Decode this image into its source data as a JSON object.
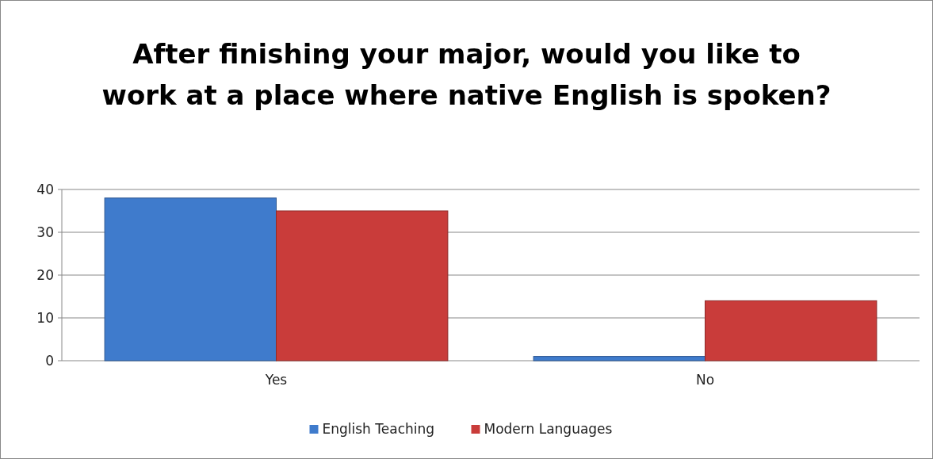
{
  "chart_data": {
    "type": "bar",
    "title": "After finishing your major, would you like to work at a place where native English is spoken?",
    "categories": [
      "Yes",
      "No"
    ],
    "series": [
      {
        "name": "English Teaching",
        "color": "#3f7bcc",
        "values": [
          38,
          1
        ]
      },
      {
        "name": "Modern Languages",
        "color": "#c93c3a",
        "values": [
          35,
          14
        ]
      }
    ],
    "ylim": [
      0,
      40
    ],
    "yticks": [
      0,
      10,
      20,
      30,
      40
    ],
    "grid": "y",
    "legend": "bottom"
  }
}
